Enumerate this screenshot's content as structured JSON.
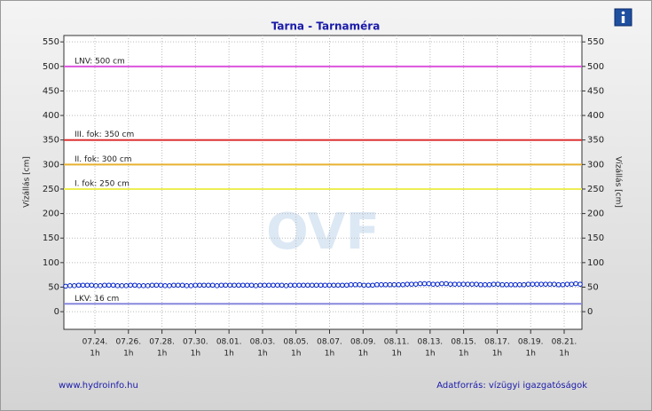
{
  "chart_data": {
    "type": "line",
    "title": "Tarna - Tarnaméra",
    "y_label": "Vízállás [cm]",
    "ylim": [
      -36,
      563
    ],
    "yticks": [
      0,
      50,
      100,
      150,
      200,
      250,
      300,
      350,
      400,
      450,
      500,
      550
    ],
    "grid": true,
    "x_ticks": [
      "07.24.",
      "07.26.",
      "07.28.",
      "07.30.",
      "08.01.",
      "08.03.",
      "08.05.",
      "08.07.",
      "08.09.",
      "08.11.",
      "08.13.",
      "08.15.",
      "08.17.",
      "08.19.",
      "08.21."
    ],
    "x_tick_hour": "1h",
    "series": [
      {
        "color": "#0022cc",
        "values": [
          52,
          53,
          53,
          54,
          54,
          54,
          54,
          53,
          53,
          54,
          54,
          54,
          53,
          53,
          53,
          54,
          54,
          53,
          53,
          53,
          54,
          54,
          54,
          53,
          53,
          54,
          54,
          54,
          53,
          53,
          54,
          54,
          54,
          54,
          54,
          53,
          54,
          54,
          54,
          54,
          54,
          54,
          54,
          54,
          53,
          54,
          54,
          54,
          54,
          54,
          54,
          53,
          54,
          54,
          54,
          54,
          54,
          54,
          54,
          54,
          54,
          54,
          54,
          54,
          54,
          54,
          55,
          55,
          55,
          54,
          54,
          54,
          55,
          55,
          55,
          55,
          55,
          55,
          55,
          56,
          56,
          56,
          57,
          57,
          57,
          56,
          56,
          57,
          57,
          56,
          56,
          56,
          56,
          56,
          56,
          56,
          55,
          55,
          55,
          56,
          56,
          55,
          55,
          55,
          55,
          55,
          55,
          56,
          56,
          56,
          56,
          56,
          56,
          56,
          55,
          55,
          56,
          56,
          57,
          56
        ]
      }
    ],
    "thresholds": [
      {
        "label": "LNV: 500 cm",
        "value": 500,
        "color": "#dd55dd"
      },
      {
        "label": "III. fok: 350 cm",
        "value": 350,
        "color": "#dd3333"
      },
      {
        "label": "II. fok: 300 cm",
        "value": 300,
        "color": "#e8b030"
      },
      {
        "label": "I. fok: 250 cm",
        "value": 250,
        "color": "#eeee55"
      },
      {
        "label": "LKV: 16 cm",
        "value": 16,
        "color": "#8888dd"
      }
    ],
    "watermark": "OVF",
    "source_url": "www.hydroinfo.hu",
    "source": "Adatforrás: vízügyi igazgatóságok"
  }
}
